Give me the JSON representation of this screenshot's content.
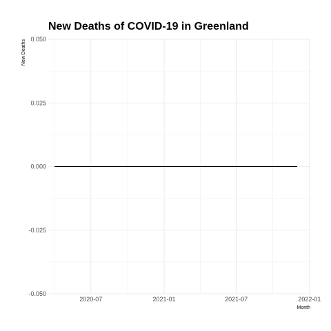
{
  "chart_data": {
    "type": "line",
    "title": "New Deaths of COVID-19 in Greenland",
    "xlabel": "Month",
    "ylabel": "New Deaths",
    "x_range": [
      "2020-03-16",
      "2022-01-03"
    ],
    "ylim": [
      -0.05,
      0.05
    ],
    "y_ticks": [
      -0.05,
      -0.025,
      0.0,
      0.025,
      0.05
    ],
    "y_tick_labels": [
      "-0.050",
      "-0.025",
      "0.000",
      "0.025",
      "0.050"
    ],
    "x_ticks": [
      "2020-07-01",
      "2021-01-01",
      "2021-07-01",
      "2022-01-01"
    ],
    "x_tick_labels": [
      "2020-07",
      "2021-01",
      "2021-07",
      "2022-01"
    ],
    "series": [
      {
        "x": [
          "2020-04-01",
          "2021-12-01"
        ],
        "values": [
          0,
          0
        ]
      }
    ],
    "grid": true,
    "line_color": "#000000"
  }
}
